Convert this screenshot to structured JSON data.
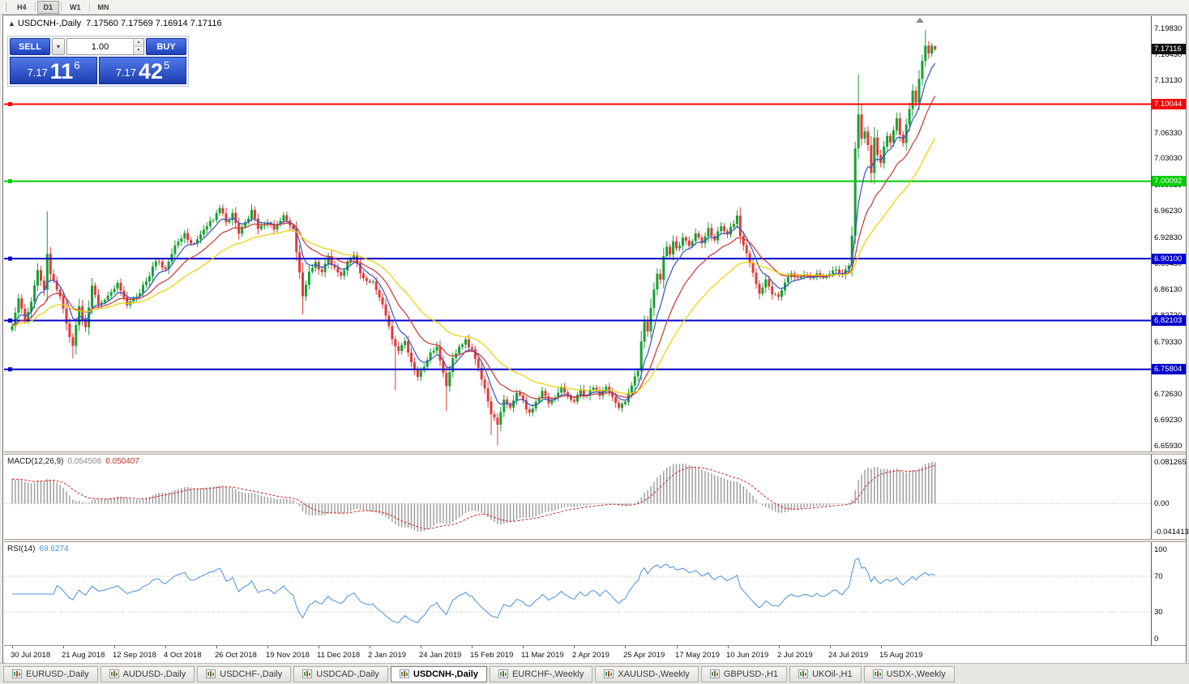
{
  "toolbar": {
    "timeframes": [
      {
        "label": "H4",
        "active": false
      },
      {
        "label": "D1",
        "active": true
      },
      {
        "label": "W1",
        "active": false
      },
      {
        "label": "MN",
        "active": false
      }
    ]
  },
  "chart_header": {
    "symbol_title": "USDCNH-,Daily",
    "ohlc": "7.17560 7.17569 7.16914 7.17116"
  },
  "trade_panel": {
    "sell_label": "SELL",
    "buy_label": "BUY",
    "lot_size": "1.00",
    "sell_price": {
      "main": "7.17",
      "pips": "11",
      "frac": "6"
    },
    "buy_price": {
      "main": "7.17",
      "pips": "42",
      "frac": "5"
    }
  },
  "indicators": {
    "macd_label": "MACD(12,26,9)",
    "macd_value_main": "0.054508",
    "macd_value_signal": "0.050407",
    "macd_axis": [
      "0.081265",
      "0.00",
      "-0.041413"
    ],
    "rsi_label": "RSI(14)",
    "rsi_value": "69.6274",
    "rsi_axis": [
      "100",
      "70",
      "30",
      "0"
    ]
  },
  "price_axis": {
    "ticks": [
      "7.19830",
      "7.16430",
      "7.13130",
      "7.09730",
      "7.06330",
      "7.03030",
      "6.99630",
      "6.96230",
      "6.92830",
      "6.89430",
      "6.86130",
      "6.82730",
      "6.79330",
      "6.75930",
      "6.72630",
      "6.69230",
      "6.65930"
    ],
    "current_price": "7.17116",
    "line_labels": [
      "7.10044",
      "7.00092",
      "6.90100",
      "6.82103",
      "6.75804"
    ]
  },
  "tabs": [
    {
      "label": "EURUSD-,Daily",
      "active": false
    },
    {
      "label": "AUDUSD-,Daily",
      "active": false
    },
    {
      "label": "USDCHF-,Daily",
      "active": false
    },
    {
      "label": "USDCAD-,Daily",
      "active": false
    },
    {
      "label": "USDCNH-,Daily",
      "active": true
    },
    {
      "label": "EURCHF-,Weekly",
      "active": false
    },
    {
      "label": "XAUUSD-,Weekly",
      "active": false
    },
    {
      "label": "GBPUSD-,H1",
      "active": false
    },
    {
      "label": "UKOil-,H1",
      "active": false
    },
    {
      "label": "USDX-,Weekly",
      "active": false
    }
  ],
  "chart_data": {
    "type": "candlestick",
    "symbol": "USDCNH",
    "period": "Daily",
    "count": 290,
    "y_range": {
      "top": 7.214,
      "bottom": 6.652
    },
    "x_label_step": 16,
    "x_labels": [
      "30 Jul 2018",
      "21 Aug 2018",
      "12 Sep 2018",
      "4 Oct 2018",
      "26 Oct 2018",
      "19 Nov 2018",
      "11 Dec 2018",
      "2 Jan 2019",
      "24 Jan 2019",
      "15 Feb 2019",
      "11 Mar 2019",
      "2 Apr 2019",
      "25 Apr 2019",
      "17 May 2019",
      "10 Jun 2019",
      "2 Jul 2019",
      "24 Jul 2019",
      "15 Aug 2019"
    ],
    "close_waypoints": [
      [
        0,
        6.815
      ],
      [
        2,
        6.848
      ],
      [
        4,
        6.822
      ],
      [
        6,
        6.845
      ],
      [
        8,
        6.885
      ],
      [
        10,
        6.858
      ],
      [
        11,
        6.905
      ],
      [
        12,
        6.88
      ],
      [
        14,
        6.862
      ],
      [
        16,
        6.838
      ],
      [
        18,
        6.8
      ],
      [
        19,
        6.788
      ],
      [
        21,
        6.838
      ],
      [
        23,
        6.81
      ],
      [
        25,
        6.868
      ],
      [
        27,
        6.842
      ],
      [
        30,
        6.852
      ],
      [
        33,
        6.868
      ],
      [
        36,
        6.842
      ],
      [
        39,
        6.852
      ],
      [
        42,
        6.872
      ],
      [
        45,
        6.898
      ],
      [
        48,
        6.888
      ],
      [
        51,
        6.918
      ],
      [
        54,
        6.932
      ],
      [
        57,
        6.918
      ],
      [
        60,
        6.94
      ],
      [
        63,
        6.952
      ],
      [
        65,
        6.968
      ],
      [
        67,
        6.948
      ],
      [
        69,
        6.958
      ],
      [
        71,
        6.932
      ],
      [
        73,
        6.948
      ],
      [
        75,
        6.962
      ],
      [
        77,
        6.94
      ],
      [
        80,
        6.95
      ],
      [
        82,
        6.938
      ],
      [
        85,
        6.955
      ],
      [
        88,
        6.938
      ],
      [
        90,
        6.882
      ],
      [
        91,
        6.85
      ],
      [
        93,
        6.882
      ],
      [
        95,
        6.895
      ],
      [
        97,
        6.882
      ],
      [
        99,
        6.902
      ],
      [
        101,
        6.888
      ],
      [
        103,
        6.878
      ],
      [
        105,
        6.898
      ],
      [
        107,
        6.908
      ],
      [
        109,
        6.882
      ],
      [
        111,
        6.872
      ],
      [
        113,
        6.87
      ],
      [
        115,
        6.852
      ],
      [
        117,
        6.828
      ],
      [
        119,
        6.798
      ],
      [
        121,
        6.782
      ],
      [
        123,
        6.792
      ],
      [
        125,
        6.768
      ],
      [
        127,
        6.748
      ],
      [
        129,
        6.76
      ],
      [
        131,
        6.778
      ],
      [
        133,
        6.788
      ],
      [
        135,
        6.755
      ],
      [
        136,
        6.738
      ],
      [
        138,
        6.772
      ],
      [
        140,
        6.788
      ],
      [
        142,
        6.795
      ],
      [
        144,
        6.782
      ],
      [
        146,
        6.758
      ],
      [
        148,
        6.732
      ],
      [
        150,
        6.702
      ],
      [
        152,
        6.688
      ],
      [
        154,
        6.718
      ],
      [
        156,
        6.708
      ],
      [
        158,
        6.728
      ],
      [
        160,
        6.716
      ],
      [
        162,
        6.7
      ],
      [
        164,
        6.716
      ],
      [
        166,
        6.73
      ],
      [
        168,
        6.712
      ],
      [
        170,
        6.722
      ],
      [
        172,
        6.736
      ],
      [
        174,
        6.722
      ],
      [
        176,
        6.716
      ],
      [
        178,
        6.73
      ],
      [
        180,
        6.722
      ],
      [
        182,
        6.736
      ],
      [
        184,
        6.726
      ],
      [
        186,
        6.736
      ],
      [
        188,
        6.72
      ],
      [
        190,
        6.706
      ],
      [
        192,
        6.718
      ],
      [
        194,
        6.736
      ],
      [
        196,
        6.758
      ],
      [
        197,
        6.792
      ],
      [
        198,
        6.818
      ],
      [
        199,
        6.805
      ],
      [
        200,
        6.838
      ],
      [
        201,
        6.862
      ],
      [
        202,
        6.882
      ],
      [
        203,
        6.872
      ],
      [
        204,
        6.902
      ],
      [
        205,
        6.916
      ],
      [
        206,
        6.906
      ],
      [
        207,
        6.922
      ],
      [
        208,
        6.912
      ],
      [
        210,
        6.928
      ],
      [
        212,
        6.916
      ],
      [
        214,
        6.932
      ],
      [
        216,
        6.922
      ],
      [
        218,
        6.938
      ],
      [
        220,
        6.926
      ],
      [
        222,
        6.942
      ],
      [
        224,
        6.932
      ],
      [
        226,
        6.948
      ],
      [
        227,
        6.958
      ],
      [
        228,
        6.928
      ],
      [
        230,
        6.906
      ],
      [
        232,
        6.882
      ],
      [
        234,
        6.858
      ],
      [
        236,
        6.872
      ],
      [
        238,
        6.856
      ],
      [
        240,
        6.852
      ],
      [
        242,
        6.872
      ],
      [
        244,
        6.882
      ],
      [
        246,
        6.876
      ],
      [
        248,
        6.882
      ],
      [
        250,
        6.876
      ],
      [
        252,
        6.882
      ],
      [
        254,
        6.876
      ],
      [
        256,
        6.882
      ],
      [
        258,
        6.886
      ],
      [
        260,
        6.88
      ],
      [
        262,
        6.892
      ],
      [
        263,
        6.932
      ],
      [
        264,
        7.042
      ],
      [
        265,
        7.088
      ],
      [
        266,
        7.056
      ],
      [
        267,
        7.066
      ],
      [
        268,
        7.046
      ],
      [
        269,
        7.012
      ],
      [
        270,
        7.058
      ],
      [
        271,
        7.036
      ],
      [
        272,
        7.026
      ],
      [
        273,
        7.046
      ],
      [
        274,
        7.06
      ],
      [
        275,
        7.052
      ],
      [
        276,
        7.066
      ],
      [
        277,
        7.08
      ],
      [
        278,
        7.062
      ],
      [
        279,
        7.048
      ],
      [
        280,
        7.072
      ],
      [
        281,
        7.096
      ],
      [
        282,
        7.116
      ],
      [
        283,
        7.102
      ],
      [
        284,
        7.132
      ],
      [
        285,
        7.158
      ],
      [
        286,
        7.176
      ],
      [
        287,
        7.166
      ],
      [
        288,
        7.176
      ],
      [
        289,
        7.17116
      ]
    ],
    "wick_overrides": {
      "11": {
        "h": 6.962
      },
      "19": {
        "l": 6.772
      },
      "91": {
        "l": 6.829
      },
      "120": {
        "l": 6.731
      },
      "136": {
        "l": 6.704
      },
      "150": {
        "l": 6.673
      },
      "152": {
        "l": 6.66
      },
      "264": {
        "h": 7.052,
        "l": 6.92
      },
      "265": {
        "h": 7.139
      },
      "286": {
        "h": 7.196
      }
    },
    "last_candle": {
      "o": 7.1756,
      "h": 7.17569,
      "l": 7.16914,
      "c": 7.17116
    },
    "horizontal_lines": [
      {
        "value": 7.10044,
        "color": "#ff0000"
      },
      {
        "value": 7.00092,
        "color": "#00cc00"
      },
      {
        "value": 6.901,
        "color": "#0000cc"
      },
      {
        "value": 6.82103,
        "color": "#0000cc"
      },
      {
        "value": 6.75804,
        "color": "#0000cc"
      }
    ],
    "moving_averages": [
      {
        "period": 7,
        "color": "#3353c8"
      },
      {
        "period": 17,
        "color": "#cf3434"
      },
      {
        "period": 34,
        "color": "#ecd000"
      }
    ],
    "macd": {
      "fast": 12,
      "slow": 26,
      "signal": 9,
      "histogram_color": "#999999",
      "signal_color": "#cc2a2a"
    },
    "rsi": {
      "period": 14,
      "color": "#4a90d9",
      "levels": [
        70,
        30
      ]
    },
    "candle_up_color": "#16a133",
    "candle_down_color": "#e23a3a"
  }
}
